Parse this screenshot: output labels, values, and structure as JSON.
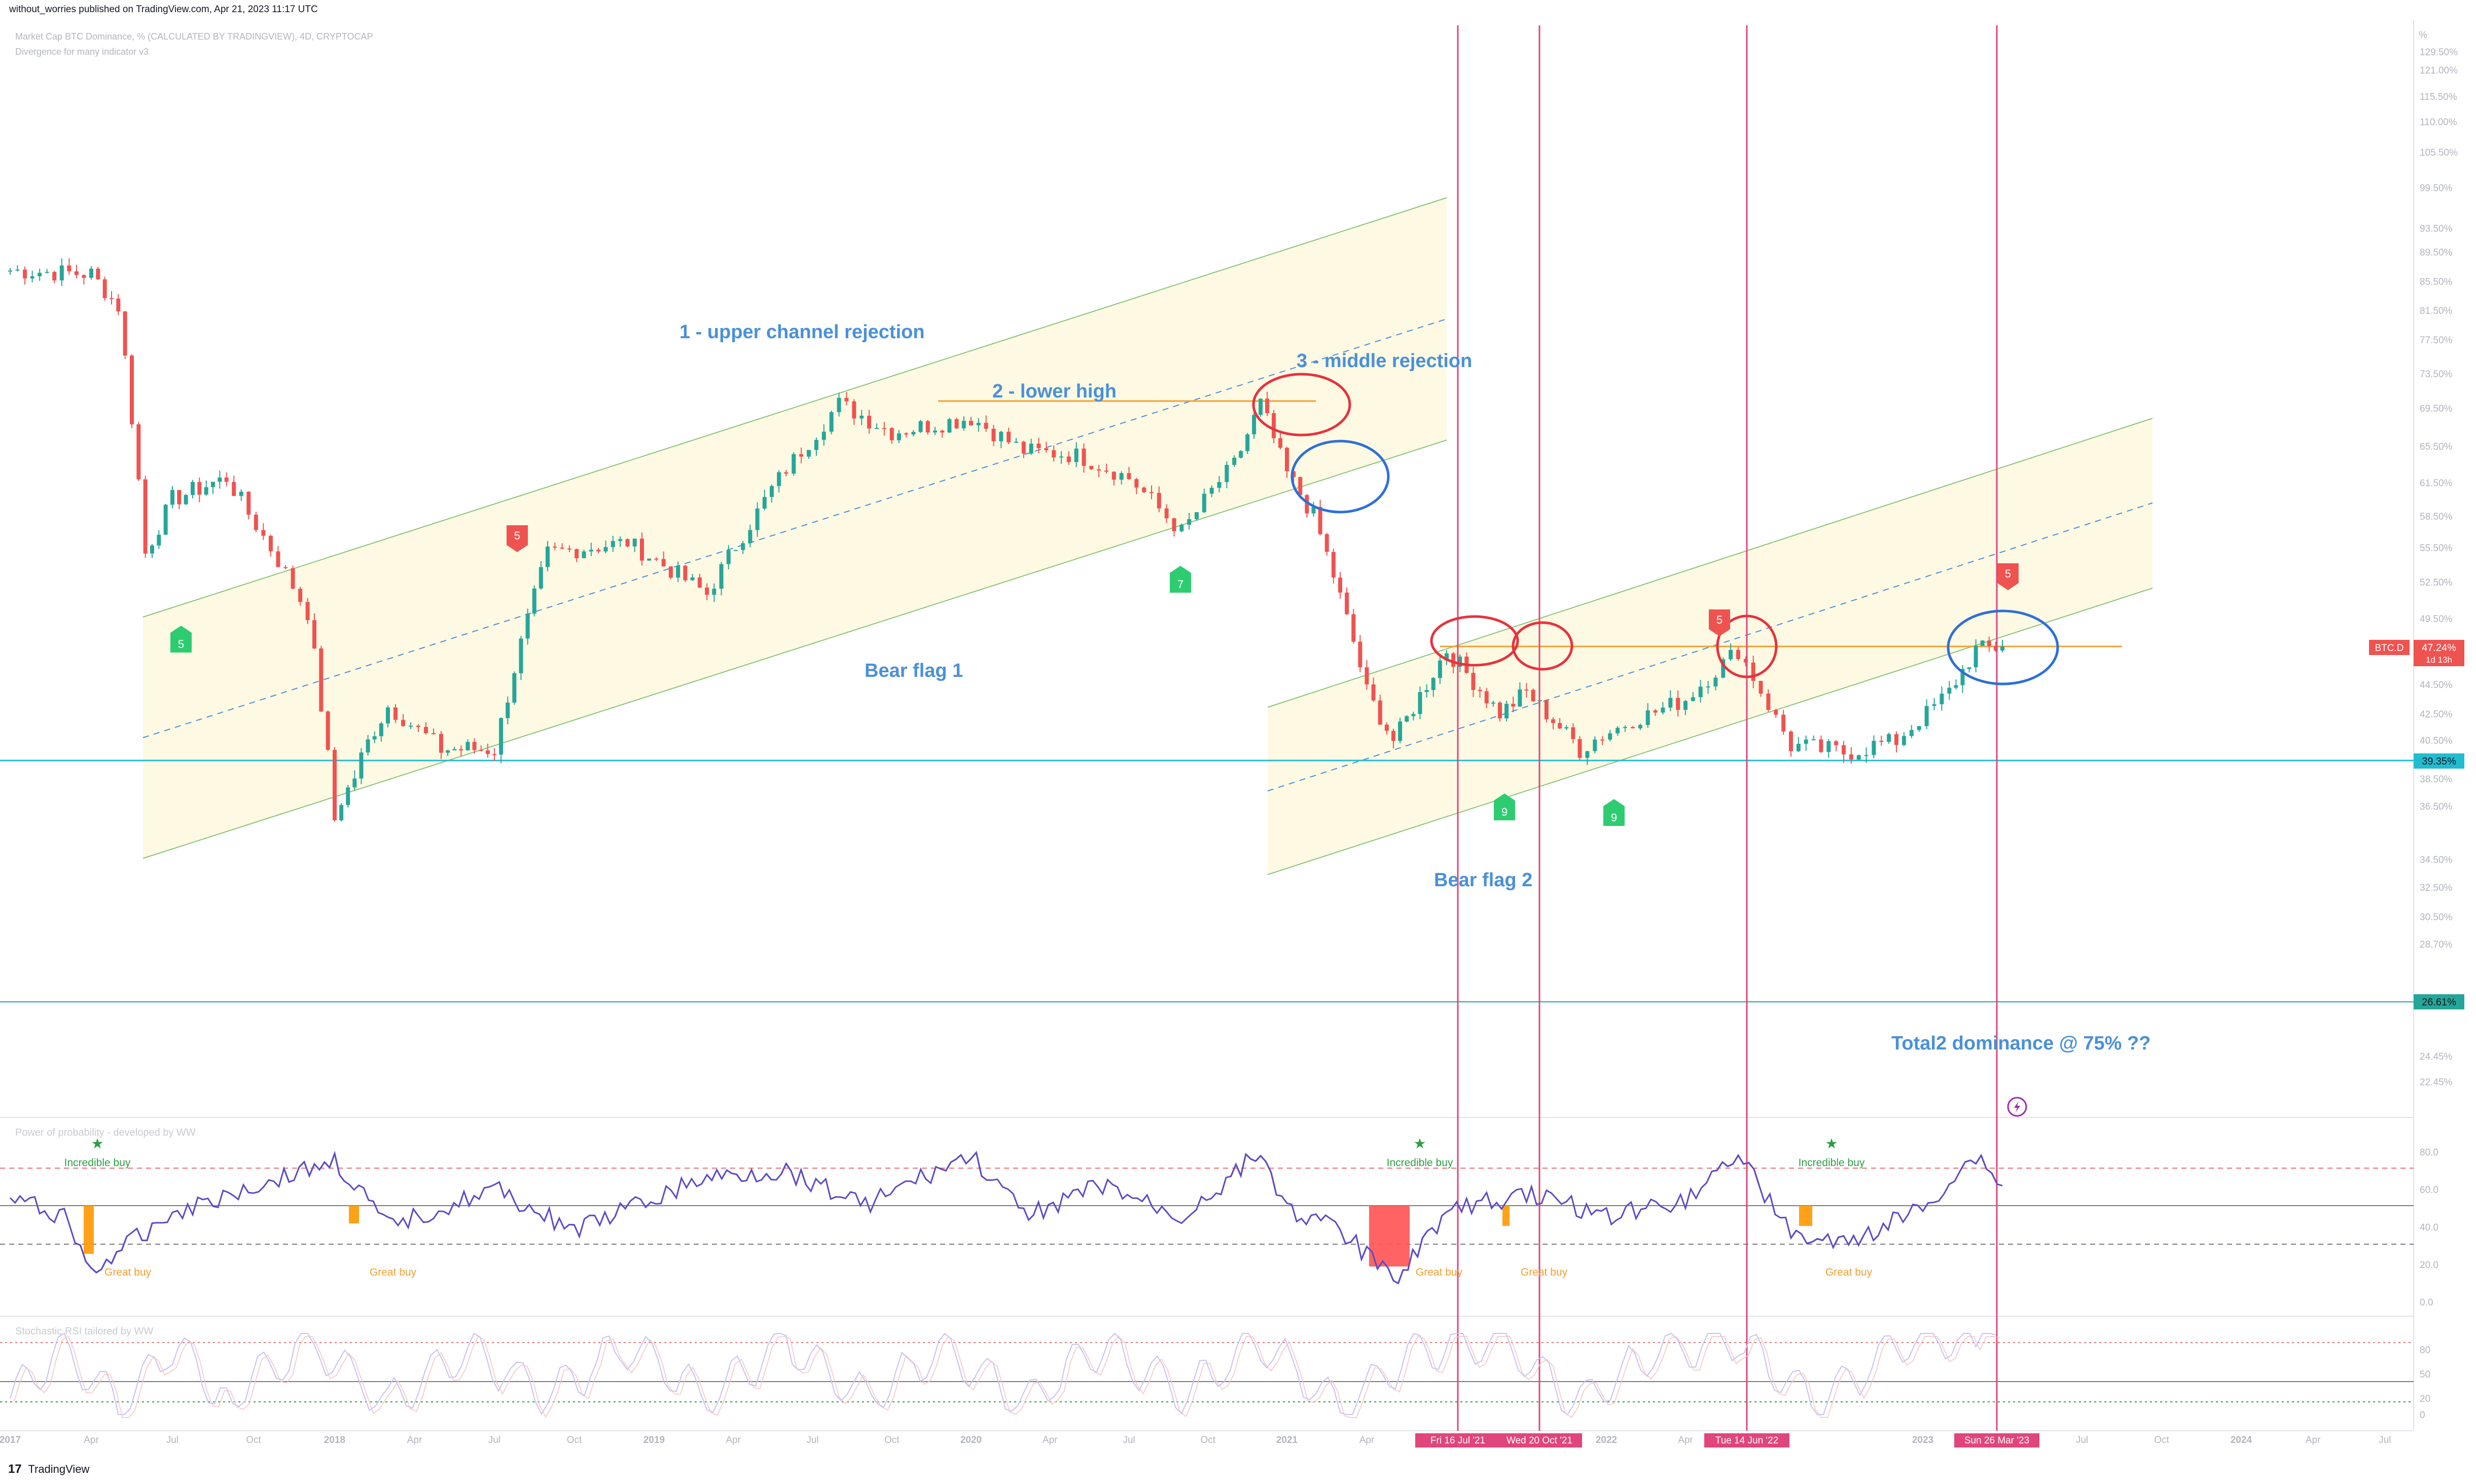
{
  "header": {
    "publisher": "without_worries published on TradingView.com, Apr 21, 2023 11:17 UTC",
    "symbol_line": "Market Cap BTC Dominance, % (CALCULATED BY TRADINGVIEW), 4D, CRYPTOCAP",
    "indicator_line": "Divergence for many indicator v3"
  },
  "footer": {
    "brand": "TradingView",
    "logo": "17"
  },
  "price_axis": {
    "unit": "%",
    "ticks": [
      "129.50%",
      "121.00%",
      "115.50%",
      "110.00%",
      "105.50%",
      "99.50%",
      "93.50%",
      "89.50%",
      "85.50%",
      "81.50%",
      "77.50%",
      "73.50%",
      "69.50%",
      "65.50%",
      "61.50%",
      "58.50%",
      "55.50%",
      "52.50%",
      "49.50%",
      "47.50%",
      "44.50%",
      "42.50%",
      "40.50%",
      "38.50%",
      "36.50%",
      "34.50%",
      "32.50%",
      "30.50%",
      "28.70%",
      "26.50%",
      "24.45%",
      "22.45%"
    ],
    "current_symbol": "BTC.D",
    "current_value": "47.24%",
    "current_sub": "1d 13h",
    "level_1": "39.35%",
    "level_2": "26.61%"
  },
  "time_axis": {
    "labels": [
      "2017",
      "Apr",
      "Jul",
      "Oct",
      "2018",
      "Apr",
      "Jul",
      "Oct",
      "2019",
      "Apr",
      "Jul",
      "Oct",
      "2020",
      "Apr",
      "Jul",
      "Oct",
      "2021",
      "Apr",
      "2022",
      "Apr",
      "2023",
      "Apr",
      "Jul",
      "Oct",
      "2024",
      "Apr",
      "Jul"
    ],
    "markers": [
      "Fri 16 Jul '21",
      "Wed 20 Oct '21",
      "Tue 14 Jun '22",
      "Sun 26 Mar '23"
    ]
  },
  "annotations": {
    "upper_channel": "1 - upper channel rejection",
    "lower_high": "2 - lower high",
    "middle_rejection": "3 - middle rejection",
    "bear_flag_1": "Bear flag 1",
    "bear_flag_2": "Bear flag 2",
    "total2": "Total2 dominance @ 75% ??"
  },
  "signals": [
    {
      "label": "5",
      "kind": "buy"
    },
    {
      "label": "5",
      "kind": "sell"
    },
    {
      "label": "7",
      "kind": "buy"
    },
    {
      "label": "9",
      "kind": "buy"
    },
    {
      "label": "9",
      "kind": "buy"
    },
    {
      "label": "5",
      "kind": "sell"
    },
    {
      "label": "5",
      "kind": "sell"
    }
  ],
  "pane2": {
    "title": "Power of probability - developed by WW",
    "ticks": [
      "80.0",
      "60.0",
      "40.0",
      "20.0",
      "0.0"
    ],
    "incredible_buy": "Incredible buy",
    "great_buy": "Great buy"
  },
  "pane3": {
    "title": "Stochastic RSI tailored by WW",
    "ticks": [
      "80",
      "50",
      "20",
      "0"
    ]
  },
  "colors": {
    "up": "#26a69a",
    "down": "#ef5350",
    "channel_fill": "#fdf9e3",
    "channel_line": "#8bc47a",
    "mid_line": "#4a90d9",
    "orange": "#f0a030",
    "cyan": "#22bcd0",
    "teal": "#26a69a",
    "vline": "#e0457b"
  },
  "chart_data": [
    {
      "type": "candlestick",
      "title": "Market Cap BTC Dominance, % (CALCULATED BY TRADINGVIEW), 4D, CRYPTOCAP",
      "ylabel": "%",
      "ylim": [
        22,
        130
      ],
      "x": [
        "2017-01",
        "2017-04",
        "2017-05",
        "2017-06",
        "2017-07",
        "2017-09",
        "2017-12",
        "2018-01",
        "2018-03",
        "2018-05",
        "2018-07",
        "2018-09",
        "2018-12",
        "2019-03",
        "2019-06",
        "2019-08",
        "2019-10",
        "2020-01",
        "2020-03",
        "2020-05",
        "2020-07",
        "2020-09",
        "2020-11",
        "2020-12",
        "2021-01",
        "2021-02",
        "2021-04",
        "2021-05",
        "2021-07",
        "2021-09",
        "2021-10",
        "2021-12",
        "2022-02",
        "2022-04",
        "2022-06",
        "2022-08",
        "2022-10",
        "2022-12",
        "2023-02",
        "2023-03",
        "2023-04"
      ],
      "values": [
        87.0,
        86.5,
        82.0,
        55.0,
        60.0,
        62.0,
        50.0,
        36.0,
        43.0,
        40.0,
        40.0,
        55.0,
        56.0,
        51.5,
        63.0,
        70.0,
        67.0,
        68.5,
        65.0,
        64.5,
        62.0,
        57.0,
        63.5,
        70.0,
        62.5,
        58.5,
        44.0,
        40.5,
        47.0,
        42.5,
        44.0,
        40.0,
        42.0,
        43.5,
        47.0,
        40.2,
        39.8,
        40.5,
        44.0,
        47.0,
        47.24
      ],
      "levels": [
        {
          "value": 39.35,
          "label": "39.35%"
        },
        {
          "value": 26.61,
          "label": "26.61%"
        }
      ],
      "current": 47.24
    },
    {
      "type": "line",
      "title": "Power of probability - developed by WW",
      "ylim": [
        0,
        90
      ],
      "x": [
        "2017-01",
        "2017-03",
        "2017-04",
        "2017-07",
        "2018-01",
        "2018-03",
        "2018-07",
        "2018-10",
        "2019-03",
        "2019-06",
        "2019-09",
        "2020-01",
        "2020-03",
        "2020-06",
        "2020-09",
        "2020-12",
        "2021-01",
        "2021-03",
        "2021-05",
        "2021-07",
        "2021-10",
        "2022-01",
        "2022-04",
        "2022-06",
        "2022-08",
        "2022-10",
        "2023-01",
        "2023-03",
        "2023-04"
      ],
      "values": [
        55,
        46,
        16,
        48,
        75,
        40,
        60,
        38,
        66,
        70,
        52,
        78,
        46,
        62,
        45,
        80,
        50,
        38,
        12,
        48,
        58,
        46,
        55,
        80,
        36,
        30,
        50,
        78,
        62
      ]
    },
    {
      "type": "line",
      "title": "Stochastic RSI tailored by WW",
      "ylim": [
        0,
        100
      ],
      "x": [
        "2017-01",
        "2017-03",
        "2017-05",
        "2017-07",
        "2017-09",
        "2017-12",
        "2018-03",
        "2018-06",
        "2018-09",
        "2018-12",
        "2019-03",
        "2019-06",
        "2019-09",
        "2019-12",
        "2020-03",
        "2020-06",
        "2020-09",
        "2020-12",
        "2021-03",
        "2021-06",
        "2021-09",
        "2021-12",
        "2022-03",
        "2022-06",
        "2022-09",
        "2022-12",
        "2023-03",
        "2023-04"
      ],
      "values": [
        20,
        80,
        10,
        85,
        20,
        90,
        15,
        80,
        25,
        85,
        20,
        90,
        20,
        80,
        15,
        85,
        25,
        90,
        10,
        80,
        90,
        15,
        80,
        90,
        10,
        85,
        95,
        75
      ]
    }
  ]
}
